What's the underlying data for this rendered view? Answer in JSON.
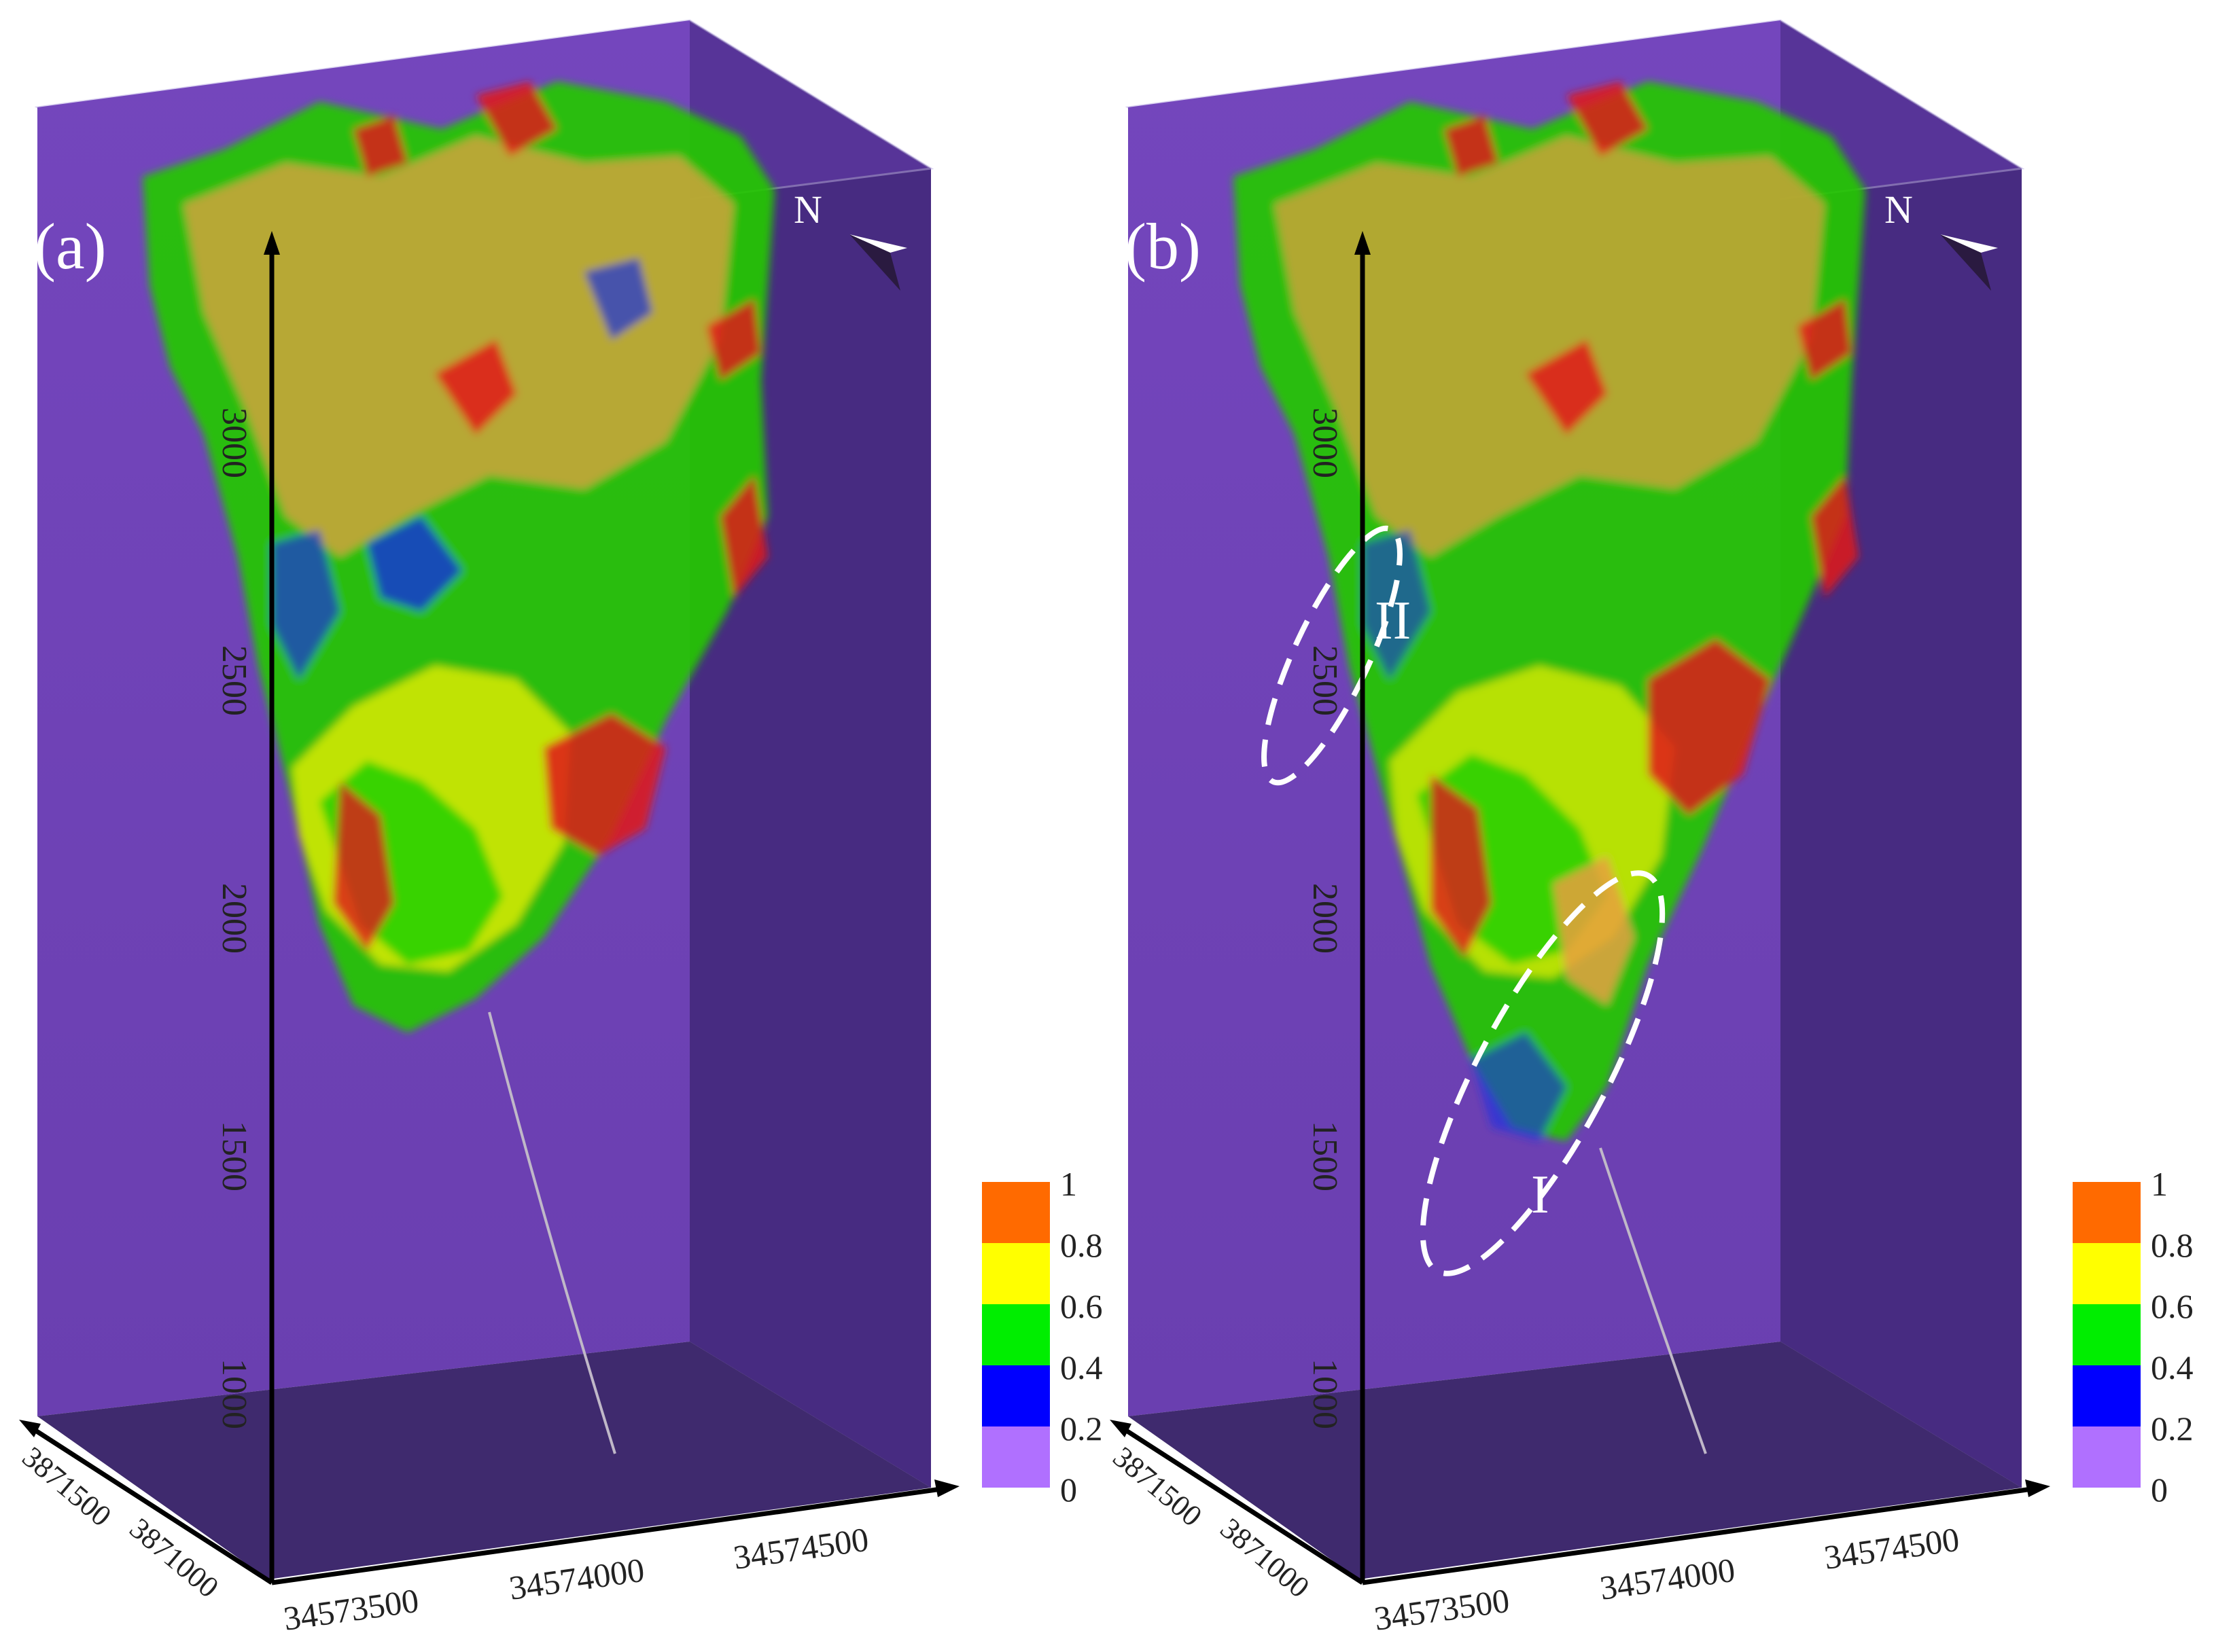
{
  "panels": [
    {
      "id": "a",
      "label": "(a)",
      "north": "N",
      "z_ticks": [
        "3000",
        "2500",
        "2000",
        "1500",
        "1000"
      ],
      "y_ticks": [
        "3871500",
        "3871000"
      ],
      "x_ticks": [
        "34573500",
        "34574000",
        "34574500"
      ],
      "annotations": []
    },
    {
      "id": "b",
      "label": "(b)",
      "north": "N",
      "z_ticks": [
        "3000",
        "2500",
        "2000",
        "1500",
        "1000"
      ],
      "y_ticks": [
        "3871500",
        "3871000"
      ],
      "x_ticks": [
        "34573500",
        "34574000",
        "34574500"
      ],
      "annotations": [
        "II",
        "I"
      ]
    }
  ],
  "colorbar": {
    "ticks": [
      "1",
      "0.8",
      "0.6",
      "0.4",
      "0.2",
      "0"
    ],
    "bands": [
      {
        "color": "#ff6a00",
        "range": "0.8-1"
      },
      {
        "color": "#ffff00",
        "range": "0.6-0.8"
      },
      {
        "color": "#00ee00",
        "range": "0.4-0.6"
      },
      {
        "color": "#0000ff",
        "range": "0.2-0.4"
      },
      {
        "color": "#b070ff",
        "range": "0-0.2"
      }
    ]
  },
  "colors": {
    "background_volume": "#6a3fb0",
    "volume_dark": "#3f2a6e",
    "body_red": "#e01818",
    "body_orange": "#f08a20",
    "body_yellow": "#f4f000",
    "body_green": "#22d000",
    "body_blue": "#1830e0"
  }
}
